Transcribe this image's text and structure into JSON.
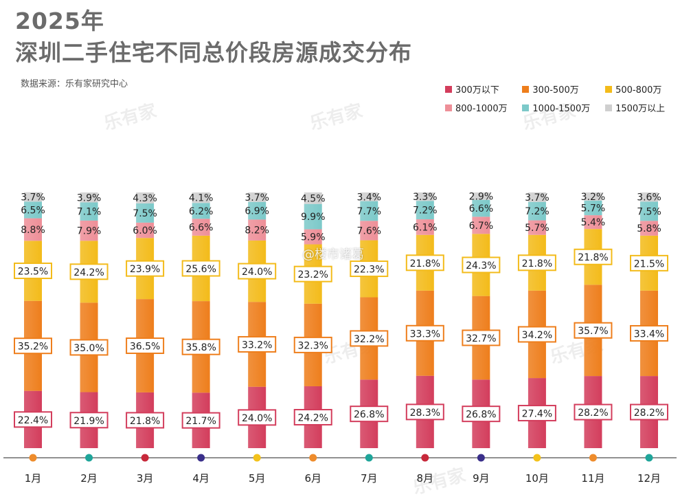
{
  "title": {
    "line1": "2025年",
    "line2": "深圳二手住宅不同总价段房源成交分布"
  },
  "source": "数据来源：乐有家研究中心",
  "credit": "@楼市诸葛",
  "watermark": "乐有家",
  "legend_colors": [
    "#d33d5c",
    "#ee7e1c",
    "#f3bb1a",
    "#ee8f98",
    "#7cc9c9",
    "#cfcfcf"
  ],
  "month_dot_colors": [
    "#ee8c2c",
    "#1fa59a",
    "#c7283a",
    "#3a2f8a",
    "#f3c21b",
    "#ee8c2c",
    "#1fa59a",
    "#c7283a",
    "#3a2f8a",
    "#f3c21b",
    "#ee8c2c",
    "#1fa59a"
  ],
  "chart_data": {
    "type": "bar",
    "stacked": true,
    "percent": true,
    "categories": [
      "1月",
      "2月",
      "3月",
      "4月",
      "5月",
      "6月",
      "7月",
      "8月",
      "9月",
      "10月",
      "11月",
      "12月"
    ],
    "series": [
      {
        "name": "300万以下",
        "values": [
          22.4,
          21.9,
          21.8,
          21.7,
          24.0,
          24.2,
          26.8,
          28.3,
          26.8,
          27.4,
          28.2,
          28.2
        ]
      },
      {
        "name": "300-500万",
        "values": [
          35.2,
          35.0,
          36.5,
          35.8,
          33.2,
          32.3,
          32.2,
          33.3,
          32.7,
          34.2,
          35.7,
          33.4
        ]
      },
      {
        "name": "500-800万",
        "values": [
          23.5,
          24.2,
          23.9,
          25.6,
          24.0,
          23.2,
          22.3,
          21.8,
          24.3,
          21.8,
          21.8,
          21.5
        ]
      },
      {
        "name": "800-1000万",
        "values": [
          8.8,
          7.9,
          6.0,
          6.6,
          8.2,
          5.9,
          7.6,
          6.1,
          6.7,
          5.7,
          5.4,
          5.8
        ]
      },
      {
        "name": "1000-1500万",
        "values": [
          6.5,
          7.1,
          7.5,
          6.2,
          6.9,
          9.9,
          7.7,
          7.2,
          6.6,
          7.2,
          5.7,
          7.5
        ]
      },
      {
        "name": "1500万以上",
        "values": [
          3.7,
          3.9,
          4.3,
          4.1,
          3.7,
          4.5,
          3.4,
          3.3,
          2.9,
          3.7,
          3.2,
          3.6
        ]
      }
    ],
    "legend_position": "top-right"
  }
}
